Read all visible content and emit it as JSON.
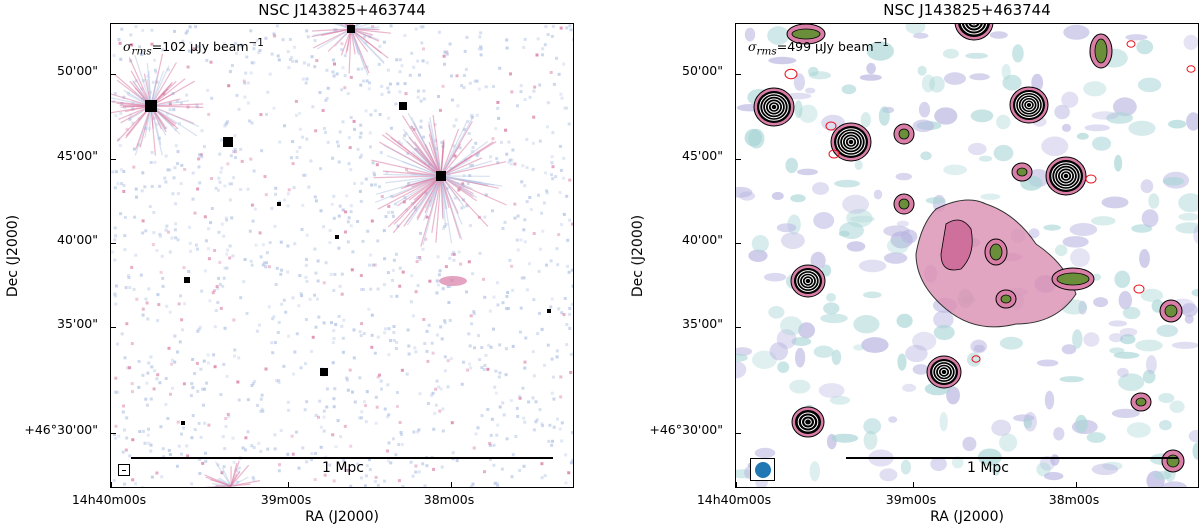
{
  "left_panel": {
    "title": "NSC J143825+463744",
    "rms_prefix": "σ",
    "rms_sub": "rms",
    "rms_value": "=102 μJy beam",
    "rms_sup": "−1",
    "scalebar_label": "1 Mpc",
    "y_ticks": [
      "50'00\"",
      "45'00\"",
      "40'00\"",
      "35'00\"",
      "+46°30'00\""
    ],
    "x_ticks": [
      "14h40m00s",
      "39m00s",
      "38m00s"
    ],
    "xlabel": "RA (J2000)",
    "ylabel": "Dec (J2000)"
  },
  "right_panel": {
    "title": "NSC J143825+463744",
    "rms_prefix": "σ",
    "rms_sub": "rms",
    "rms_value": "=499 μJy beam",
    "rms_sup": "−1",
    "scalebar_label": "1 Mpc",
    "y_ticks": [
      "50'00\"",
      "45'00\"",
      "40'00\"",
      "35'00\"",
      "+46°30'00\""
    ],
    "x_ticks": [
      "14h40m00s",
      "39m00s",
      "38m00s"
    ],
    "xlabel": "RA (J2000)",
    "ylabel": "Dec (J2000)"
  },
  "colors": {
    "noise_blue": "#b8c8e6",
    "emission_pink": "#d97ea6",
    "emission_green": "#6b8e3a",
    "contour_black": "#000000",
    "contour_red": "#e8101a",
    "beam_blue": "#1f77b4"
  }
}
